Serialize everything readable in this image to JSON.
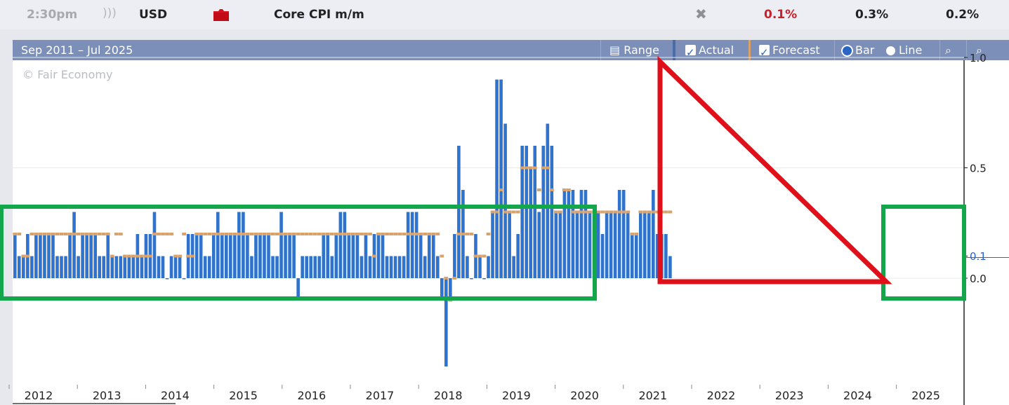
{
  "event": {
    "time": "2:30pm",
    "currency": "USD",
    "title": "Core CPI m/m",
    "actual": "0.1%",
    "forecast": "0.3%",
    "previous": "0.2%",
    "icons": {
      "sound": "sound-icon",
      "impact": "folder-impact-icon",
      "no": "crossed-out-icon"
    }
  },
  "toolbar": {
    "range_text": "Sep 2011 – Jul 2025",
    "range_label": "Range",
    "actual_label": "Actual",
    "forecast_label": "Forecast",
    "bar_label": "Bar",
    "line_label": "Line",
    "selected": "Bar"
  },
  "copyright": "© Fair Economy",
  "colors": {
    "actual_bar": "#2f73cc",
    "forecast_mark": "#d9a26b",
    "accent": "#7b8fb9",
    "green_box": "#14a64a",
    "red_triangle": "#e0101a",
    "actual_text": "#c8202a"
  },
  "chart_data": {
    "type": "bar",
    "start": "2011-09",
    "end": "2025-07",
    "xlabels": [
      "2012",
      "2013",
      "2014",
      "2015",
      "2016",
      "2017",
      "2018",
      "2019",
      "2020",
      "2021",
      "2022",
      "2023",
      "2024",
      "2025"
    ],
    "ylabels": [
      "1.0",
      "0.5",
      "0.1",
      "0.0"
    ],
    "ylim": [
      -0.4,
      1.0
    ],
    "series": [
      {
        "name": "Actual",
        "values": [
          0.2,
          0.1,
          0.1,
          0.2,
          0.1,
          0.2,
          0.2,
          0.2,
          0.2,
          0.2,
          0.1,
          0.1,
          0.1,
          0.2,
          0.3,
          0.1,
          0.2,
          0.2,
          0.2,
          0.2,
          0.1,
          0.1,
          0.2,
          0.1,
          0.1,
          0.1,
          0.1,
          0.1,
          0.1,
          0.2,
          0.1,
          0.2,
          0.2,
          0.3,
          0.1,
          0.1,
          0.0,
          0.1,
          0.1,
          0.1,
          0.0,
          0.2,
          0.2,
          0.2,
          0.2,
          0.1,
          0.1,
          0.2,
          0.3,
          0.2,
          0.2,
          0.2,
          0.2,
          0.3,
          0.3,
          0.2,
          0.1,
          0.2,
          0.2,
          0.2,
          0.2,
          0.1,
          0.1,
          0.3,
          0.2,
          0.2,
          0.2,
          -0.1,
          0.1,
          0.1,
          0.1,
          0.1,
          0.1,
          0.2,
          0.2,
          0.1,
          0.2,
          0.3,
          0.3,
          0.2,
          0.2,
          0.2,
          0.1,
          0.2,
          0.1,
          0.2,
          0.2,
          0.2,
          0.1,
          0.1,
          0.1,
          0.1,
          0.1,
          0.3,
          0.3,
          0.3,
          0.2,
          0.1,
          0.2,
          0.2,
          0.1,
          -0.1,
          -0.4,
          -0.1,
          0.2,
          0.6,
          0.4,
          0.1,
          0.0,
          0.2,
          0.1,
          0.0,
          0.1,
          0.3,
          0.9,
          0.9,
          0.7,
          0.3,
          0.1,
          0.2,
          0.6,
          0.6,
          0.5,
          0.6,
          0.3,
          0.6,
          0.7,
          0.6,
          0.3,
          0.3,
          0.4,
          0.4,
          0.4,
          0.3,
          0.4,
          0.4,
          0.3,
          0.3,
          0.3,
          0.2,
          0.3,
          0.3,
          0.3,
          0.4,
          0.4,
          0.3,
          0.2,
          0.2,
          0.3,
          0.3,
          0.3,
          0.4,
          0.2,
          0.2,
          0.2,
          0.1
        ]
      },
      {
        "name": "Forecast",
        "values": [
          0.2,
          0.2,
          0.1,
          0.1,
          0.2,
          0.2,
          0.2,
          0.2,
          0.2,
          0.2,
          0.2,
          0.2,
          0.2,
          0.2,
          0.2,
          0.2,
          0.2,
          0.2,
          0.2,
          0.2,
          0.2,
          0.2,
          0.2,
          0.1,
          0.2,
          0.2,
          0.1,
          0.1,
          0.1,
          0.1,
          0.1,
          0.1,
          0.1,
          0.2,
          0.2,
          0.2,
          0.2,
          0.2,
          0.1,
          0.1,
          0.2,
          0.1,
          0.1,
          0.2,
          0.2,
          0.2,
          0.2,
          0.2,
          0.2,
          0.2,
          0.2,
          0.2,
          0.2,
          0.2,
          0.2,
          0.2,
          0.2,
          0.2,
          0.2,
          0.2,
          0.2,
          0.2,
          0.2,
          0.2,
          0.2,
          0.2,
          0.2,
          0.2,
          0.2,
          0.2,
          0.2,
          0.2,
          0.2,
          0.2,
          0.2,
          0.2,
          0.2,
          0.2,
          0.2,
          0.2,
          0.2,
          0.2,
          0.2,
          0.2,
          0.2,
          0.1,
          0.2,
          0.2,
          0.2,
          0.2,
          0.2,
          0.2,
          0.2,
          0.2,
          0.2,
          0.2,
          0.2,
          0.2,
          0.2,
          0.2,
          0.2,
          0.1,
          0.0,
          -0.1,
          0.0,
          0.2,
          0.2,
          0.2,
          0.2,
          0.1,
          0.1,
          0.1,
          0.2,
          0.3,
          0.3,
          0.4,
          0.3,
          0.3,
          0.3,
          0.3,
          0.5,
          0.5,
          0.5,
          0.5,
          0.4,
          0.5,
          0.5,
          0.4,
          0.3,
          0.3,
          0.4,
          0.4,
          0.3,
          0.3,
          0.3,
          0.3,
          0.3,
          0.3,
          0.3,
          0.3,
          0.3,
          0.3,
          0.3,
          0.3,
          0.3,
          0.3,
          0.2,
          0.2,
          0.3,
          0.3,
          0.3,
          0.3,
          0.3,
          0.3,
          0.3,
          0.3
        ]
      }
    ]
  }
}
